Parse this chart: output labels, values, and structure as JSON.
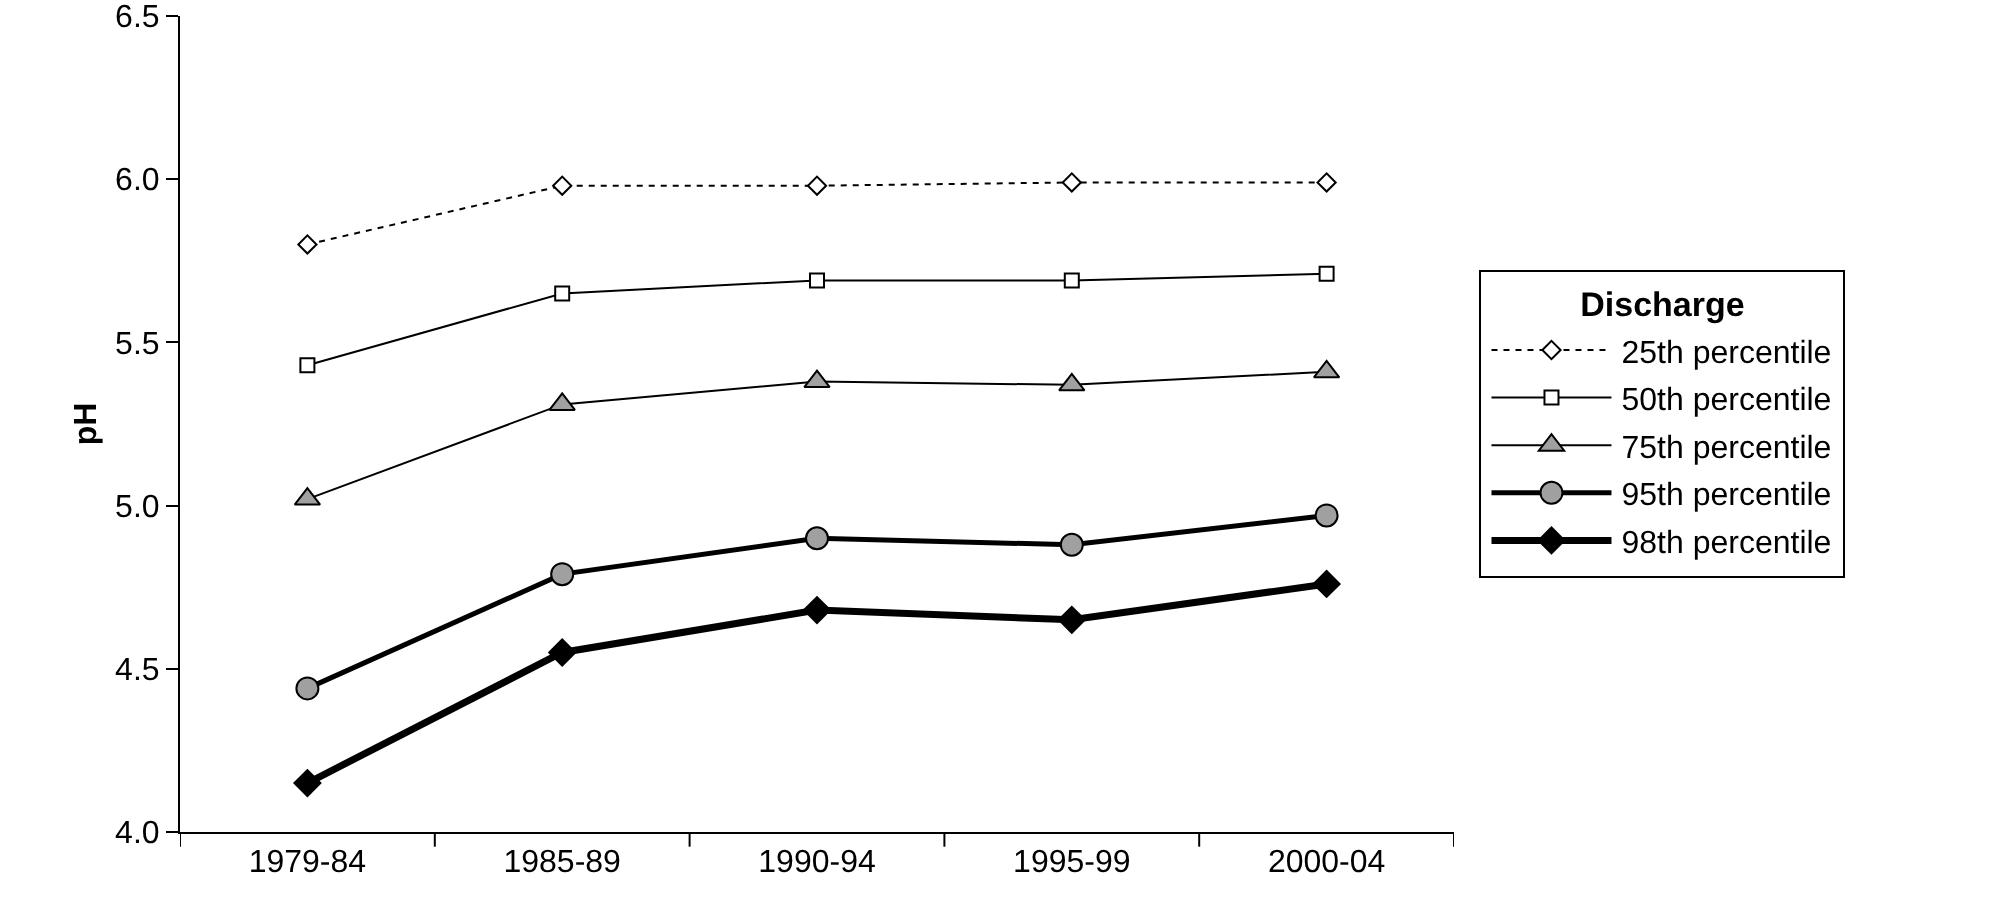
{
  "chart_data": {
    "type": "line",
    "ylabel": "pH",
    "legend_title": "Discharge",
    "categories": [
      "1979-84",
      "1985-89",
      "1990-94",
      "1995-99",
      "2000-04"
    ],
    "series": [
      {
        "name": "25th percentile",
        "color": "#000000",
        "marker": "diamond",
        "line_style": "dotted",
        "values": [
          5.8,
          5.98,
          5.98,
          5.99,
          5.99
        ]
      },
      {
        "name": "50th percentile",
        "color": "#000000",
        "marker": "square",
        "line_style": "solid",
        "values": [
          5.43,
          5.65,
          5.69,
          5.69,
          5.71
        ]
      },
      {
        "name": "75th percentile",
        "color": "#000000",
        "marker": "triangle",
        "line_style": "solid",
        "values": [
          5.02,
          5.31,
          5.38,
          5.37,
          5.41
        ]
      },
      {
        "name": "95th percentile",
        "color": "#000000",
        "marker": "circle",
        "line_style": "solid",
        "values": [
          4.44,
          4.79,
          4.9,
          4.88,
          4.97
        ]
      },
      {
        "name": "98th percentile",
        "color": "#000000",
        "marker": "diamond",
        "line_style": "solid",
        "values": [
          4.15,
          4.55,
          4.68,
          4.65,
          4.76
        ]
      }
    ],
    "ylim": [
      4.0,
      6.5
    ],
    "yticks": [
      {
        "value": 4,
        "label": "4.0"
      },
      {
        "value": 4.5,
        "label": "4.5"
      },
      {
        "value": 5,
        "label": "5.0"
      },
      {
        "value": 5.5,
        "label": "5.5"
      },
      {
        "value": 6,
        "label": "6.0"
      },
      {
        "value": 6.5,
        "label": "6.5"
      }
    ],
    "grid": false,
    "legend": "right"
  }
}
